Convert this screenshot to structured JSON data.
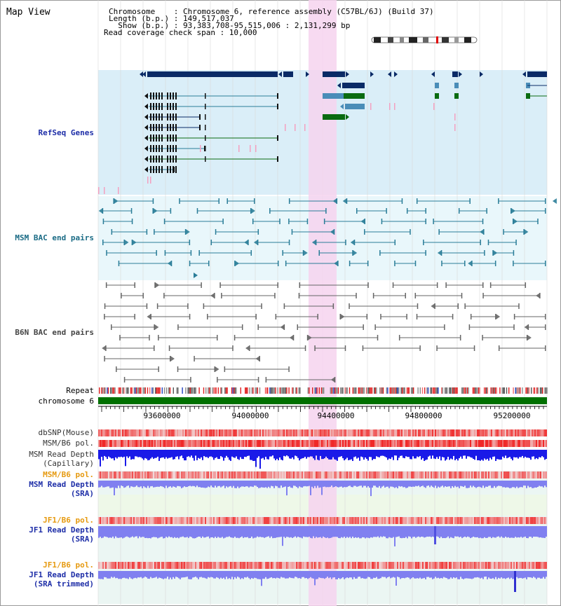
{
  "title": "Map View",
  "info": {
    "chromosome": "Chromosome    : Chromosome 6, reference assembly (C57BL/6J) (Build 37)",
    "length": "Length (b.p.) : 149,517,037",
    "show": "  Show (b.p.) : 93,383,708-95,515,006 : 2,131,299 bp",
    "coverage": "Read coverage check span : 10,000"
  },
  "tracks": {
    "refseq": "RefSeq Genes",
    "msm_bac": "MSM BAC end pairs",
    "b6n_bac": "B6N BAC end pairs",
    "repeat": "Repeat",
    "chromosome": "chromosome 6",
    "dbsnp": "dbSNP(Mouse)",
    "msm_b6_pol_1": "MSM/B6 pol.",
    "msm_read_depth_cap_1": "MSM Read Depth",
    "msm_read_depth_cap_2": "(Capillary)",
    "msm_b6_pol_2": "MSM/B6 pol.",
    "msm_read_depth_sra_1": "MSM Read Depth",
    "msm_read_depth_sra_2": "(SRA)",
    "jf1_b6_pol_1": "JF1/B6 pol.",
    "jf1_read_depth_sra_1": "JF1 Read Depth",
    "jf1_read_depth_sra_2": "(SRA)",
    "jf1_b6_pol_2": "JF1/B6 pol.",
    "jf1_read_depth_trim_1": "JF1 Read Depth",
    "jf1_read_depth_trim_2": "(SRA trimmed)"
  },
  "axis": {
    "ticks": [
      "93600000",
      "94000000",
      "94400000",
      "94800000",
      "95200000"
    ]
  },
  "colors": {
    "refseq_bg": "#daeef8",
    "bac_bg": "#e9f7fb",
    "highlight": "#f6d4ef",
    "gene_dark": "#0a2a66",
    "gene_green": "#0a6b10",
    "gene_steel": "#4a8db8",
    "bac_teal": "#2a7d98",
    "bac_gray": "#666666",
    "chromosome_bar": "#007000",
    "depth_capillary": "#1a1ae8",
    "depth_sra": "#8080f0",
    "pol_red": "#e83838",
    "pol_pink": "#f8a8a8"
  }
}
